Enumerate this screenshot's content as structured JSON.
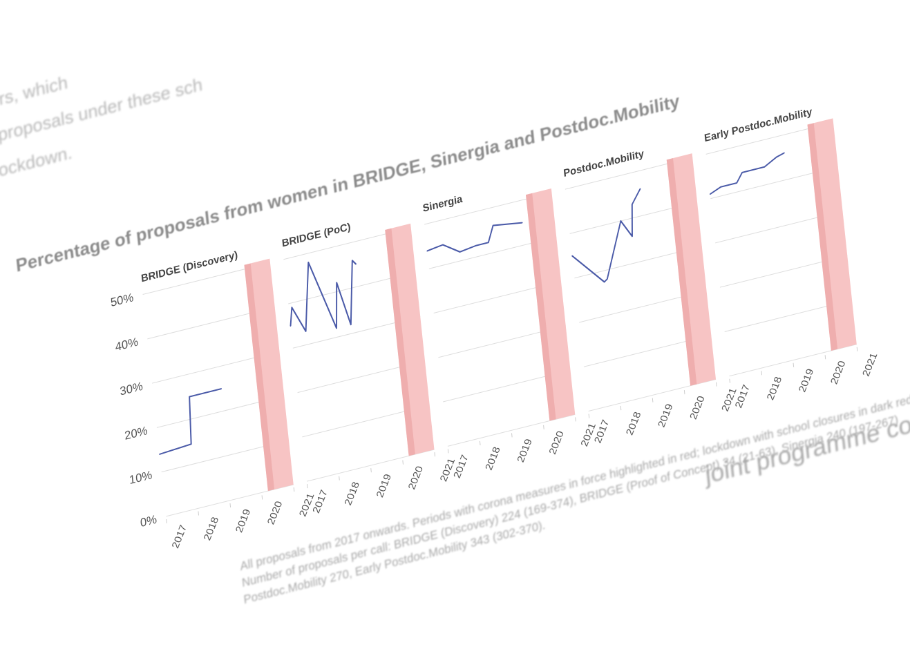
{
  "background_text": {
    "line1": "mbers, which",
    "line2": "ber of proposals under these sch",
    "line3": "the lockdown."
  },
  "chart_title": "Percentage of proposals from women in BRIDGE, Sinergia and Postdoc.Mobility",
  "footnote": {
    "line1": "All proposals from 2017 onwards. Periods with corona measures in force highlighted in red; lockdown with school closures in dark red.",
    "line2": "Number of proposals per call: BRIDGE (Discovery) 224 (169-374), BRIDGE (Proof of Concept) 34 (21-63), Sinergia 240 (197-267)",
    "line3": "Postdoc.Mobility 270, Early Postdoc.Mobility 343 (302-370)."
  },
  "next_heading": "joint programme conducted",
  "colors": {
    "line": "#4a5aa8",
    "corona_band": "#f7c4c4",
    "lockdown_band": "#ea9d9d",
    "grid": "#dddddd",
    "text": "#555555"
  },
  "chart_data": {
    "type": "line",
    "y_ticks": [
      "0%",
      "10%",
      "20%",
      "30%",
      "40%",
      "50%"
    ],
    "ylim": [
      0,
      50
    ],
    "x_ticks": [
      "2017",
      "2018",
      "2019",
      "2020",
      "2021"
    ],
    "xlim": [
      2017,
      2021
    ],
    "corona_period": [
      2020.2,
      2021
    ],
    "lockdown_period": [
      2020.2,
      2020.4
    ],
    "panels": [
      {
        "title": "BRIDGE (Discovery)",
        "x": [
          2017.0,
          2018.0,
          2018.1,
          2019.1
        ],
        "y": [
          14,
          14.5,
          25,
          25
        ]
      },
      {
        "title": "BRIDGE (PoC)",
        "x": [
          2017.0,
          2017.1,
          2017.45,
          2017.55,
          2017.75,
          2018.4,
          2018.55,
          2018.85,
          2019.1,
          2019.2
        ],
        "y": [
          35,
          39,
          33,
          38,
          48,
          32,
          42,
          32,
          46,
          45
        ]
      },
      {
        "title": "Sinergia",
        "x": [
          2017.0,
          2017.5,
          2018.0,
          2018.5,
          2018.9,
          2019.1,
          2020.0
        ],
        "y": [
          44,
          44.5,
          42,
          42.5,
          42.5,
          46,
          45
        ]
      },
      {
        "title": "Postdoc.Mobility",
        "x": [
          2017.0,
          2017.9,
          2018.0,
          2018.6,
          2018.9,
          2019.0,
          2019.3
        ],
        "y": [
          35,
          27.5,
          28,
          40,
          36,
          43,
          46
        ]
      },
      {
        "title": "Early Postdoc.Mobility",
        "x": [
          2017.0,
          2017.35,
          2017.85,
          2018.05,
          2018.75,
          2019.15,
          2019.4
        ],
        "y": [
          41,
          42,
          42,
          44,
          44,
          45.5,
          46
        ]
      }
    ]
  }
}
